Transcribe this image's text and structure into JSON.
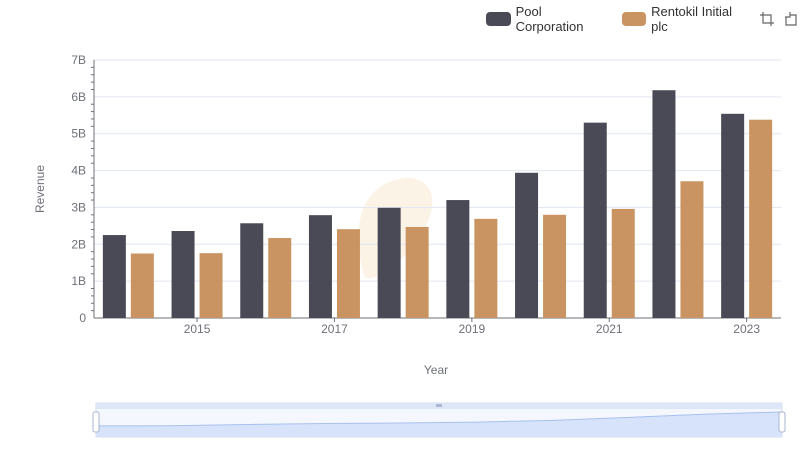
{
  "legend": {
    "series_a": "Pool Corporation",
    "series_b": "Rentokil Initial plc"
  },
  "toolbar": {
    "zoom_icon": "crop-zoom-icon",
    "restore_icon": "restore-icon"
  },
  "colors": {
    "series_a": "#4a4a56",
    "series_b": "#c99461",
    "grid": "#e0e6f1",
    "axis": "#6e7079"
  },
  "chart_data": {
    "type": "bar",
    "xlabel": "Year",
    "ylabel": "Revenue",
    "x": [
      2014,
      2015,
      2016,
      2017,
      2018,
      2019,
      2020,
      2021,
      2022,
      2023
    ],
    "x_tick_labels": [
      "2015",
      "2017",
      "2019",
      "2021",
      "2023"
    ],
    "y_tick_labels": [
      "0",
      "1B",
      "2B",
      "3B",
      "4B",
      "5B",
      "6B",
      "7B"
    ],
    "ylim": [
      0,
      7000000000
    ],
    "grid": true,
    "legend_position": "top-right",
    "series": [
      {
        "name": "Pool Corporation",
        "values": [
          2250000000,
          2360000000,
          2570000000,
          2790000000,
          2990000000,
          3200000000,
          3940000000,
          5300000000,
          6180000000,
          5540000000
        ]
      },
      {
        "name": "Rentokil Initial plc",
        "values": [
          1750000000,
          1760000000,
          2170000000,
          2410000000,
          2470000000,
          2690000000,
          2800000000,
          2960000000,
          3710000000,
          5380000000
        ]
      }
    ],
    "data_zoom": {
      "start_fraction": 0,
      "end_fraction": 1
    }
  }
}
